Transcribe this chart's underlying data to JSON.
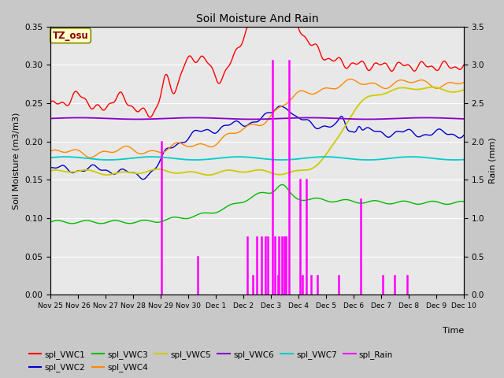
{
  "title": "Soil Moisture And Rain",
  "xlabel": "Time",
  "ylabel_left": "Soil Moisture (m3/m3)",
  "ylabel_right": "Rain (mm)",
  "ylim_left": [
    0.0,
    0.35
  ],
  "ylim_right": [
    0.0,
    3.5
  ],
  "annotation_text": "TZ_osu",
  "annotation_color": "#8b0000",
  "annotation_bg": "#ffffcc",
  "annotation_border": "#888800",
  "fig_bg_color": "#c8c8c8",
  "plot_bg_color": "#e8e8e8",
  "colors": {
    "VWC1": "#ff0000",
    "VWC2": "#0000cc",
    "VWC3": "#00bb00",
    "VWC4": "#ff8800",
    "VWC5": "#cccc00",
    "VWC6": "#8800cc",
    "VWC7": "#00cccc",
    "Rain": "#ff00ff"
  },
  "tick_labels": [
    "Nov 25",
    "Nov 26",
    "Nov 27",
    "Nov 28",
    "Nov 29",
    "Nov 30",
    "Dec 1",
    "Dec 2",
    "Dec 3",
    "Dec 4",
    "Dec 5",
    "Dec 6",
    "Dec 7",
    "Dec 8",
    "Dec 9",
    "Dec 10"
  ],
  "yticks_left": [
    0.0,
    0.05,
    0.1,
    0.15,
    0.2,
    0.25,
    0.3,
    0.35
  ],
  "yticks_right": [
    0.0,
    0.5,
    1.0,
    1.5,
    2.0,
    2.5,
    3.0,
    3.5
  ],
  "legend_row1": [
    "spl_VWC1",
    "spl_VWC2",
    "spl_VWC3",
    "spl_VWC4",
    "spl_VWC5",
    "spl_VWC6"
  ],
  "legend_row2": [
    "spl_VWC7",
    "spl_Rain"
  ]
}
